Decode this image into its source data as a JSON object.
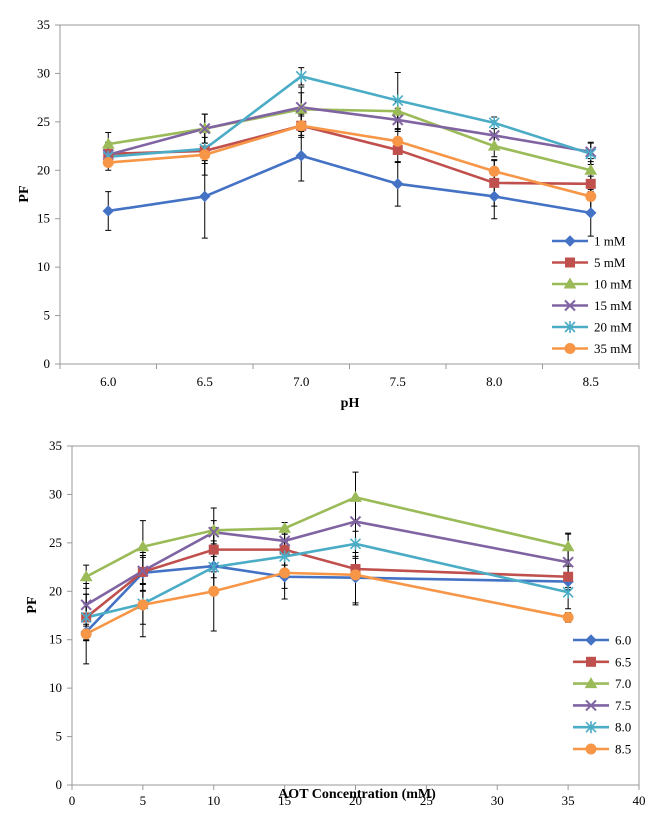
{
  "chart_data": [
    {
      "type": "line",
      "xlabel": "pH",
      "ylabel": "PF",
      "x_type": "category",
      "categories": [
        "6.0",
        "6.5",
        "7.0",
        "7.5",
        "8.0",
        "8.5"
      ],
      "ylim": [
        0,
        35
      ],
      "yticks": [
        "0",
        "5",
        "10",
        "15",
        "20",
        "25",
        "30",
        "35"
      ],
      "grid": false,
      "legend_position": "right",
      "series": [
        {
          "name": "1 mM",
          "color": "#4472C4",
          "marker": "diamond",
          "values": [
            15.8,
            17.3,
            21.5,
            18.6,
            17.3,
            15.6
          ],
          "errors": [
            2.0,
            4.3,
            2.6,
            2.3,
            2.3,
            2.4
          ]
        },
        {
          "name": "5 mM",
          "color": "#C0504D",
          "marker": "square",
          "values": [
            21.7,
            22.0,
            24.6,
            22.1,
            18.7,
            18.6
          ],
          "errors": [
            1.2,
            2.5,
            1.0,
            1.3,
            2.4,
            0.8
          ]
        },
        {
          "name": "10 mM",
          "color": "#9BBB59",
          "marker": "triangle",
          "values": [
            22.7,
            24.3,
            26.3,
            26.1,
            22.5,
            20.0
          ],
          "errors": [
            1.2,
            1.5,
            2.3,
            1.0,
            1.1,
            1.2
          ]
        },
        {
          "name": "15 mM",
          "color": "#8064A2",
          "marker": "x",
          "values": [
            21.6,
            24.3,
            26.5,
            25.2,
            23.6,
            21.9
          ],
          "errors": [
            1.2,
            1.5,
            1.5,
            1.2,
            1.5,
            1.0
          ]
        },
        {
          "name": "20 mM",
          "color": "#4BACC6",
          "marker": "star",
          "values": [
            21.4,
            22.2,
            29.7,
            27.2,
            24.9,
            21.7
          ],
          "errors": [
            1.0,
            1.2,
            0.9,
            2.9,
            0.6,
            1.1
          ]
        },
        {
          "name": "35 mM",
          "color": "#F79646",
          "marker": "circle",
          "values": [
            20.8,
            21.6,
            24.6,
            23.0,
            19.9,
            17.3
          ],
          "errors": [
            0.8,
            0.9,
            1.2,
            1.2,
            1.1,
            1.5
          ]
        }
      ]
    },
    {
      "type": "line",
      "xlabel": "AOT Concentration (mM)",
      "ylabel": "PF",
      "x_type": "numeric",
      "x": [
        1,
        5,
        10,
        15,
        20,
        35
      ],
      "xlim": [
        0,
        40
      ],
      "xticks": [
        "0",
        "5",
        "10",
        "15",
        "20",
        "25",
        "30",
        "35",
        "40"
      ],
      "ylim": [
        0,
        35
      ],
      "yticks": [
        "0",
        "5",
        "10",
        "15",
        "20",
        "25",
        "30",
        "35"
      ],
      "grid": false,
      "legend_position": "right",
      "series": [
        {
          "name": "6.0",
          "color": "#4472C4",
          "marker": "diamond",
          "values": [
            15.8,
            21.9,
            22.6,
            21.5,
            21.4,
            21.0
          ],
          "errors": [
            0.8,
            1.8,
            2.6,
            1.2,
            2.6,
            0.8
          ]
        },
        {
          "name": "6.5",
          "color": "#C0504D",
          "marker": "square",
          "values": [
            17.3,
            22.0,
            24.3,
            24.3,
            22.3,
            21.5
          ],
          "errors": [
            2.4,
            2.0,
            2.3,
            1.6,
            1.1,
            1.1
          ]
        },
        {
          "name": "7.0",
          "color": "#9BBB59",
          "marker": "triangle",
          "values": [
            21.5,
            24.6,
            26.3,
            26.5,
            29.7,
            24.6
          ],
          "errors": [
            1.2,
            2.7,
            2.3,
            0.6,
            2.6,
            1.4
          ]
        },
        {
          "name": "7.5",
          "color": "#8064A2",
          "marker": "x",
          "values": [
            18.6,
            22.1,
            26.1,
            25.2,
            27.2,
            23.0
          ],
          "errors": [
            2.2,
            1.4,
            1.2,
            1.3,
            2.5,
            2.9
          ]
        },
        {
          "name": "8.0",
          "color": "#4BACC6",
          "marker": "star",
          "values": [
            17.3,
            18.7,
            22.5,
            23.6,
            24.9,
            19.9
          ],
          "errors": [
            2.4,
            2.1,
            1.1,
            1.5,
            1.3,
            1.7
          ]
        },
        {
          "name": "8.5",
          "color": "#F79646",
          "marker": "circle",
          "values": [
            15.6,
            18.6,
            20.0,
            21.9,
            21.7,
            17.3
          ],
          "errors": [
            3.1,
            3.3,
            4.1,
            2.7,
            3.1,
            0.5
          ]
        }
      ]
    }
  ]
}
